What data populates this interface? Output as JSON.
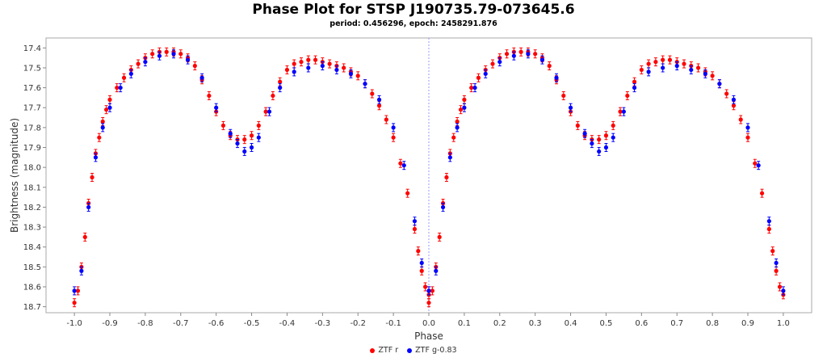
{
  "chart_data": {
    "type": "scatter",
    "title": "Phase Plot for STSP J190735.79-073645.6",
    "subtitle": "period: 0.456296, epoch: 2458291.876",
    "xlabel": "Phase",
    "ylabel": "Brightness (magnitude)",
    "xlim": [
      -1.08,
      1.08
    ],
    "ylim": [
      18.73,
      17.35
    ],
    "y_inverted": true,
    "xticks": [
      "-1.0",
      "-0.9",
      "-0.8",
      "-0.7",
      "-0.6",
      "-0.5",
      "-0.4",
      "-0.3",
      "-0.2",
      "-0.1",
      "0.0",
      "0.1",
      "0.2",
      "0.3",
      "0.4",
      "0.5",
      "0.6",
      "0.7",
      "0.8",
      "0.9",
      "1.0"
    ],
    "yticks": [
      "17.4",
      "17.5",
      "17.6",
      "17.7",
      "17.8",
      "17.9",
      "18.0",
      "18.1",
      "18.2",
      "18.3",
      "18.4",
      "18.5",
      "18.6",
      "18.7"
    ],
    "grid": false,
    "legend_position": "bottom",
    "reference_line_x": 0.0,
    "series": [
      {
        "name": "ZTF r",
        "color": "#ff0000",
        "x": [
          0.0,
          0.01,
          0.02,
          0.03,
          0.04,
          0.05,
          0.06,
          0.07,
          0.08,
          0.09,
          0.1,
          0.12,
          0.14,
          0.16,
          0.18,
          0.2,
          0.22,
          0.24,
          0.26,
          0.28,
          0.3,
          0.32,
          0.34,
          0.36,
          0.38,
          0.4,
          0.42,
          0.44,
          0.46,
          0.48,
          0.5,
          0.52,
          0.54,
          0.56,
          0.58,
          0.6,
          0.62,
          0.64,
          0.66,
          0.68,
          0.7,
          0.72,
          0.74,
          0.76,
          0.78,
          0.8,
          0.82,
          0.84,
          0.86,
          0.88,
          0.9,
          0.92,
          0.94,
          0.96,
          0.97,
          0.98,
          0.99,
          1.0
        ],
        "y": [
          18.68,
          18.62,
          18.5,
          18.35,
          18.18,
          18.05,
          17.93,
          17.85,
          17.77,
          17.71,
          17.66,
          17.6,
          17.55,
          17.51,
          17.48,
          17.45,
          17.43,
          17.42,
          17.42,
          17.42,
          17.43,
          17.45,
          17.49,
          17.56,
          17.64,
          17.72,
          17.79,
          17.84,
          17.86,
          17.86,
          17.84,
          17.79,
          17.72,
          17.64,
          17.57,
          17.51,
          17.48,
          17.47,
          17.46,
          17.46,
          17.47,
          17.48,
          17.49,
          17.5,
          17.52,
          17.54,
          17.58,
          17.63,
          17.69,
          17.76,
          17.85,
          17.98,
          18.13,
          18.31,
          18.42,
          18.52,
          18.6,
          18.64
        ]
      },
      {
        "name": "ZTF g-0.83",
        "color": "#0000ff",
        "x": [
          0.0,
          0.02,
          0.04,
          0.06,
          0.08,
          0.1,
          0.13,
          0.16,
          0.2,
          0.24,
          0.28,
          0.32,
          0.36,
          0.4,
          0.44,
          0.46,
          0.48,
          0.5,
          0.52,
          0.55,
          0.58,
          0.62,
          0.66,
          0.7,
          0.74,
          0.78,
          0.82,
          0.86,
          0.9,
          0.93,
          0.96,
          0.98,
          1.0
        ],
        "y": [
          18.62,
          18.52,
          18.2,
          17.95,
          17.8,
          17.7,
          17.6,
          17.53,
          17.47,
          17.44,
          17.43,
          17.46,
          17.55,
          17.7,
          17.83,
          17.88,
          17.92,
          17.9,
          17.85,
          17.72,
          17.6,
          17.52,
          17.5,
          17.49,
          17.51,
          17.53,
          17.58,
          17.66,
          17.8,
          17.99,
          18.27,
          18.48,
          18.62
        ]
      }
    ]
  }
}
